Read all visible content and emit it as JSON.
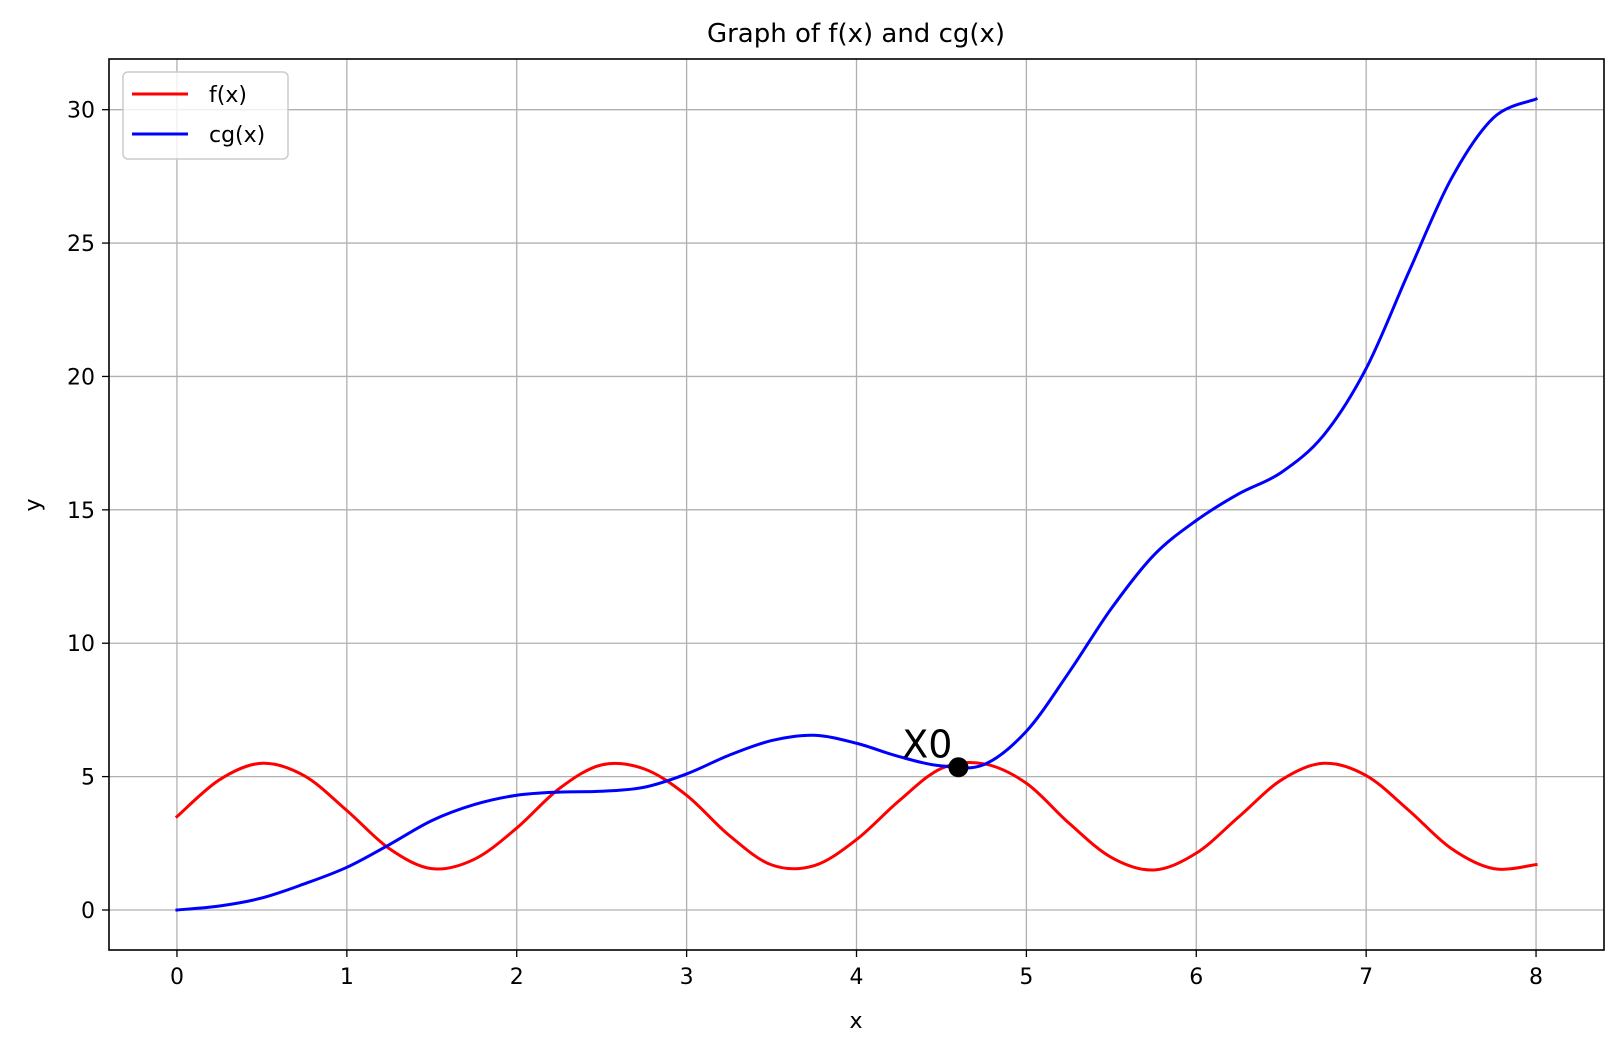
{
  "chart_data": {
    "type": "line",
    "title": "Graph of f(x) and cg(x)",
    "xlabel": "x",
    "ylabel": "y",
    "xlim": [
      -0.4,
      8.4
    ],
    "ylim": [
      -1.5,
      31.9
    ],
    "xticks": [
      0,
      1,
      2,
      3,
      4,
      5,
      6,
      7,
      8
    ],
    "yticks": [
      0,
      5,
      10,
      15,
      20,
      25,
      30
    ],
    "grid": true,
    "legend_position": "upper-left",
    "series": [
      {
        "name": "f(x)",
        "color": "#ff0000",
        "x": [
          0,
          0.25,
          0.5,
          0.75,
          1,
          1.25,
          1.5,
          1.75,
          2,
          2.25,
          2.5,
          2.75,
          3,
          3.25,
          3.5,
          3.75,
          4,
          4.25,
          4.5,
          4.75,
          5,
          5.25,
          5.5,
          5.75,
          6,
          6.25,
          6.5,
          6.75,
          7,
          7.25,
          7.5,
          7.75,
          8
        ],
        "y": [
          3.5,
          4.88,
          5.5,
          5.03,
          3.73,
          2.3,
          1.55,
          1.9,
          3.07,
          4.55,
          5.44,
          5.29,
          4.3,
          2.8,
          1.69,
          1.66,
          2.64,
          4.09,
          5.31,
          5.48,
          4.75,
          3.26,
          1.97,
          1.5,
          2.13,
          3.49,
          4.87,
          5.5,
          5.04,
          3.74,
          2.31,
          1.55,
          1.7
        ]
      },
      {
        "name": "cg(x)",
        "color": "#0000ff",
        "x": [
          0,
          0.25,
          0.5,
          0.75,
          1,
          1.25,
          1.5,
          1.75,
          2,
          2.25,
          2.5,
          2.75,
          3,
          3.25,
          3.5,
          3.75,
          4,
          4.25,
          4.5,
          4.75,
          5,
          5.25,
          5.5,
          5.75,
          6,
          6.25,
          6.5,
          6.75,
          7,
          7.25,
          7.5,
          7.75,
          8
        ],
        "y": [
          0,
          0.15,
          0.45,
          0.98,
          1.6,
          2.45,
          3.35,
          3.95,
          4.3,
          4.42,
          4.45,
          4.6,
          5.1,
          5.8,
          6.35,
          6.55,
          6.25,
          5.75,
          5.4,
          5.45,
          6.7,
          8.9,
          11.3,
          13.3,
          14.6,
          15.6,
          16.4,
          17.8,
          20.3,
          23.9,
          27.4,
          29.7,
          30.4
        ]
      }
    ],
    "annotations": [
      {
        "text": "X0",
        "x": 4.6,
        "y": 5.35
      }
    ]
  }
}
